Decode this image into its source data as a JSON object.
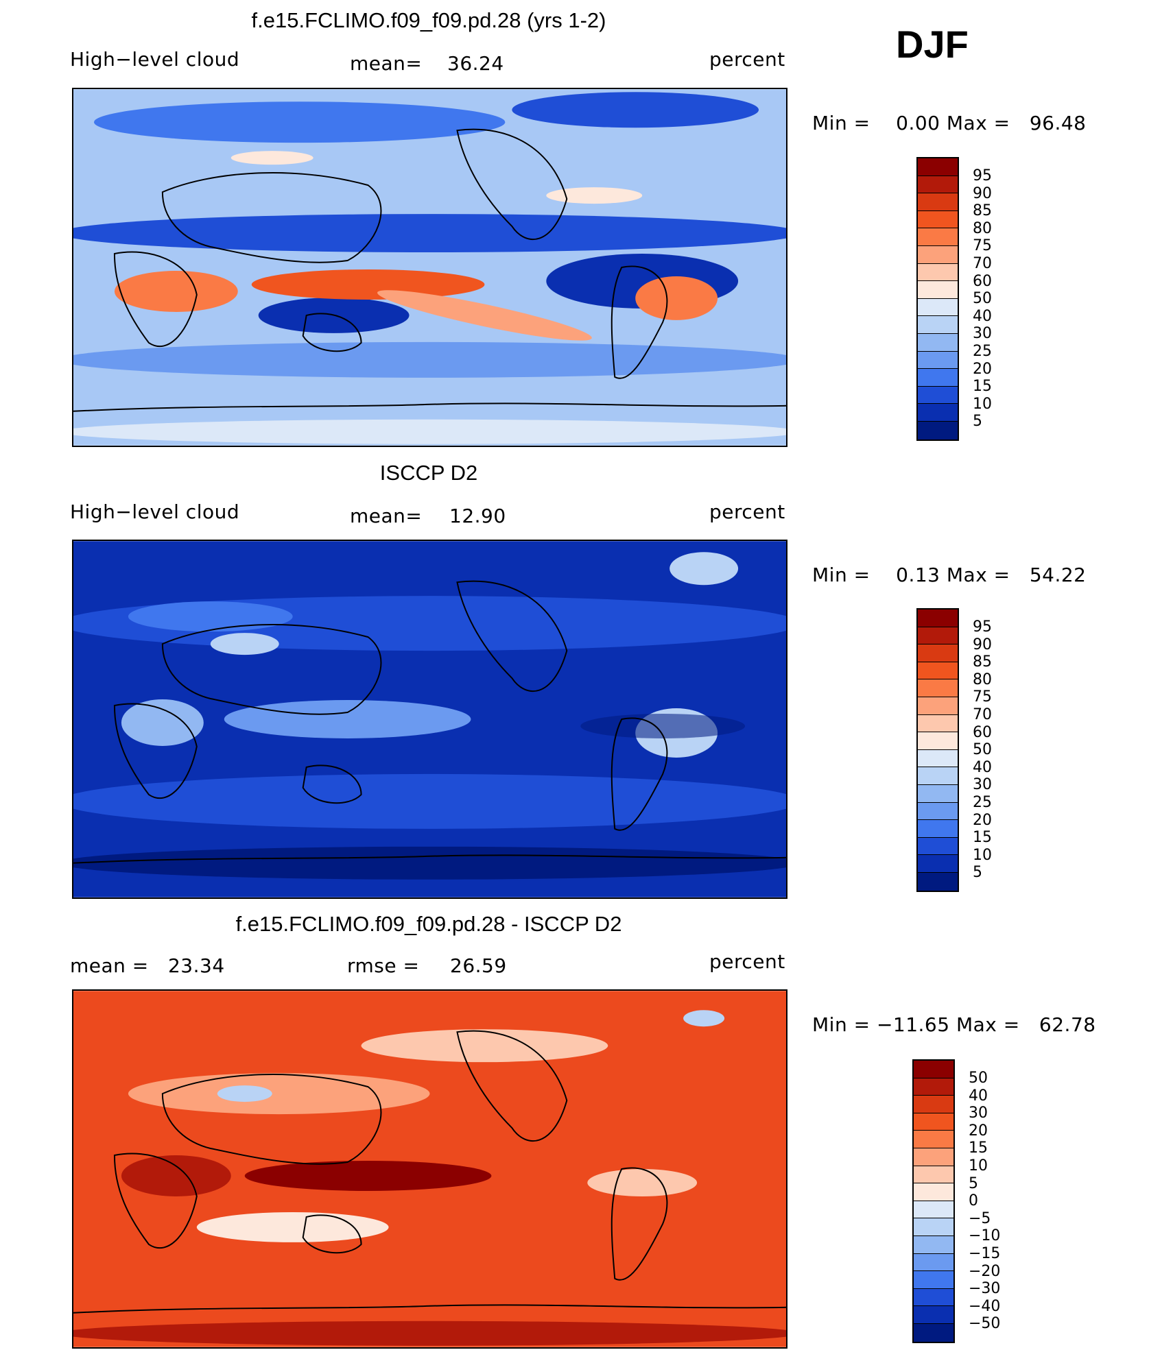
{
  "season": "DJF",
  "panels": [
    {
      "id": "model",
      "title": "f.e15.FCLIMO.f09_f09.pd.28 (yrs 1-2)",
      "left_label": "High−level cloud",
      "mean_label": "mean=",
      "mean_value": "36.24",
      "units": "percent",
      "range_text": "Min =    0.00 Max =   96.48",
      "map_name": "model-high-cloud-map"
    },
    {
      "id": "obs",
      "title": "ISCCP D2",
      "left_label": "High−level cloud",
      "mean_label": "mean=",
      "mean_value": "12.90",
      "units": "percent",
      "range_text": "Min =    0.13 Max =   54.22",
      "map_name": "isccp-high-cloud-map"
    },
    {
      "id": "diff",
      "title": "f.e15.FCLIMO.f09_f09.pd.28 - ISCCP D2",
      "left_label": "mean =   23.34",
      "mean_label": "rmse =",
      "mean_value": "26.59",
      "units": "percent",
      "range_text": "Min = −11.65 Max =   62.78",
      "map_name": "difference-map"
    }
  ],
  "legend_cloud": {
    "labels": [
      "95",
      "90",
      "85",
      "80",
      "75",
      "70",
      "60",
      "50",
      "40",
      "30",
      "25",
      "20",
      "15",
      "10",
      "5"
    ],
    "colors": [
      "#8b0000",
      "#b21a0a",
      "#d93a12",
      "#f0551f",
      "#fa7a45",
      "#fca27b",
      "#fdc8ae",
      "#fde8dc",
      "#dce8f8",
      "#b9d3f5",
      "#92b8f2",
      "#6b9af0",
      "#4077ee",
      "#1f4ed6",
      "#0a2fb0",
      "#001a80"
    ]
  },
  "legend_diff": {
    "labels": [
      "50",
      "40",
      "30",
      "20",
      "15",
      "10",
      "5",
      "0",
      "−5",
      "−10",
      "−15",
      "−20",
      "−30",
      "−40",
      "−50"
    ],
    "colors": [
      "#8b0000",
      "#b21a0a",
      "#d93a12",
      "#f0551f",
      "#fa7a45",
      "#fca27b",
      "#fdc8ae",
      "#fde8dc",
      "#dce8f8",
      "#b9d3f5",
      "#92b8f2",
      "#6b9af0",
      "#4077ee",
      "#1f4ed6",
      "#0a2fb0",
      "#001a80"
    ]
  },
  "colors": {
    "model_base": "#a8c8f5",
    "obs_base": "#0a2fb0",
    "diff_base": "#ec4a1e"
  }
}
